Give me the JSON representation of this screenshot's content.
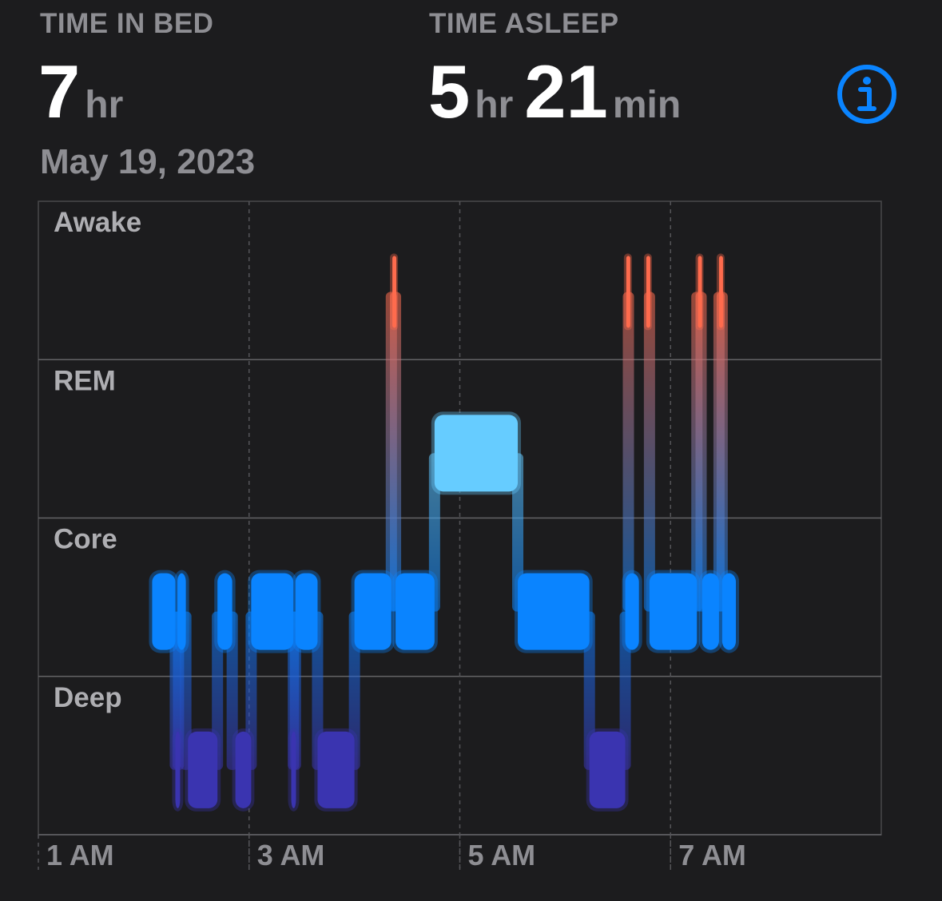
{
  "header": {
    "time_in_bed_label": "TIME IN BED",
    "time_in_bed_hours": "7",
    "time_in_bed_hours_unit": "hr",
    "time_asleep_label": "TIME ASLEEP",
    "time_asleep_hours": "5",
    "time_asleep_hours_unit": "hr",
    "time_asleep_minutes": "21",
    "time_asleep_minutes_unit": "min",
    "date": "May 19, 2023",
    "info_icon": "info-circle-icon"
  },
  "colors": {
    "background": "#1c1c1e",
    "awake": "#ff6b4d",
    "rem": "#66ccff",
    "core": "#0a84ff",
    "deep": "#3a34b0",
    "accent": "#0a84ff"
  },
  "chart_data": {
    "type": "hypnogram",
    "stages": [
      "Awake",
      "REM",
      "Core",
      "Deep"
    ],
    "x_ticks": [
      "1 AM",
      "3 AM",
      "5 AM",
      "7 AM"
    ],
    "x_unit": "hours",
    "x_range": [
      1,
      9
    ],
    "grid": true,
    "segments": [
      {
        "stage": "Core",
        "start": 2.08,
        "end": 2.3
      },
      {
        "stage": "Core",
        "start": 2.32,
        "end": 2.4
      },
      {
        "stage": "Deep",
        "start": 2.3,
        "end": 2.33
      },
      {
        "stage": "Deep",
        "start": 2.42,
        "end": 2.7
      },
      {
        "stage": "Core",
        "start": 2.7,
        "end": 2.84
      },
      {
        "stage": "Deep",
        "start": 2.87,
        "end": 3.02
      },
      {
        "stage": "Core",
        "start": 3.02,
        "end": 3.42
      },
      {
        "stage": "Deep",
        "start": 3.4,
        "end": 3.44
      },
      {
        "stage": "Core",
        "start": 3.44,
        "end": 3.65
      },
      {
        "stage": "Deep",
        "start": 3.65,
        "end": 4.0
      },
      {
        "stage": "Core",
        "start": 4.0,
        "end": 4.35
      },
      {
        "stage": "Awake",
        "start": 4.36,
        "end": 4.39
      },
      {
        "stage": "Core",
        "start": 4.39,
        "end": 4.76
      },
      {
        "stage": "REM",
        "start": 4.76,
        "end": 5.55
      },
      {
        "stage": "Core",
        "start": 5.55,
        "end": 6.23
      },
      {
        "stage": "Deep",
        "start": 6.23,
        "end": 6.57
      },
      {
        "stage": "Core",
        "start": 6.57,
        "end": 6.7
      },
      {
        "stage": "Awake",
        "start": 6.58,
        "end": 6.61
      },
      {
        "stage": "Awake",
        "start": 6.77,
        "end": 6.8
      },
      {
        "stage": "Core",
        "start": 6.8,
        "end": 7.25
      },
      {
        "stage": "Awake",
        "start": 7.26,
        "end": 7.29
      },
      {
        "stage": "Core",
        "start": 7.3,
        "end": 7.46
      },
      {
        "stage": "Awake",
        "start": 7.46,
        "end": 7.49
      },
      {
        "stage": "Core",
        "start": 7.49,
        "end": 7.62
      }
    ]
  }
}
